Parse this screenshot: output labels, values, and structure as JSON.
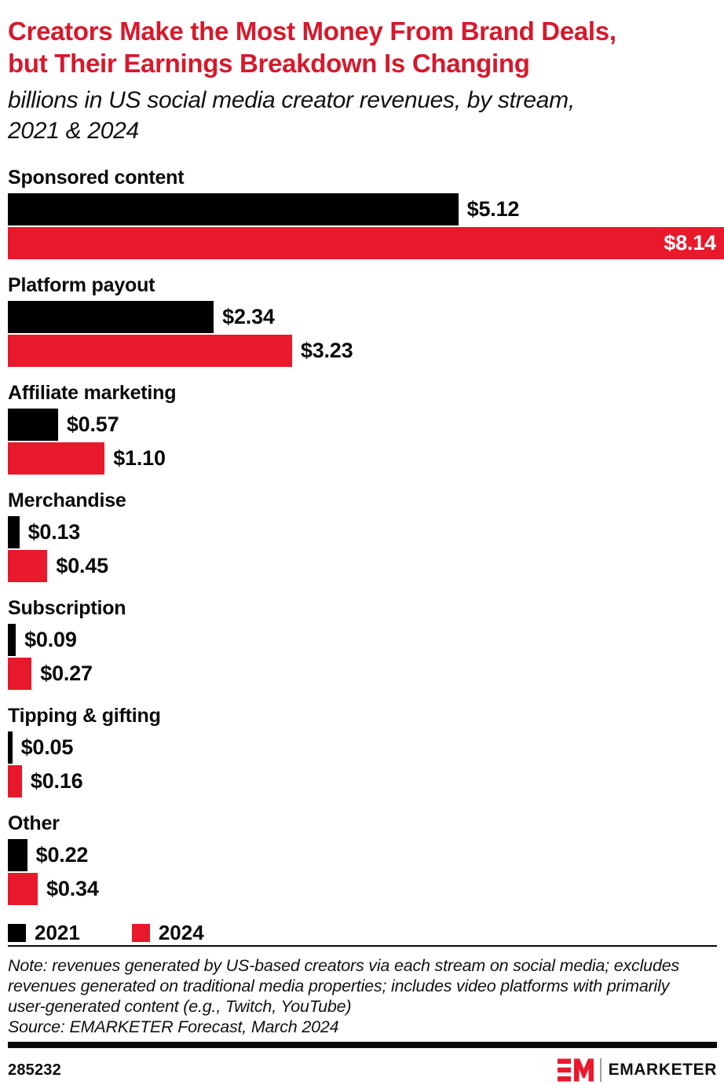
{
  "header": {
    "title_line1": "Creators Make the Most Money From Brand Deals,",
    "title_line2": "but Their Earnings Breakdown Is Changing",
    "subtitle_line1": "billions in US social media creator revenues, by stream,",
    "subtitle_line2": "2021 & 2024"
  },
  "chart_data": {
    "type": "bar",
    "orientation": "horizontal",
    "title": "Creators Make the Most Money From Brand Deals, but Their Earnings Breakdown Is Changing",
    "subtitle": "billions in US social media creator revenues, by stream, 2021 & 2024",
    "unit": "billions of US dollars",
    "xmax": 8.14,
    "grid": false,
    "legend_position": "bottom",
    "categories": [
      "Sponsored content",
      "Platform payout",
      "Affiliate marketing",
      "Merchandise",
      "Subscription",
      "Tipping & gifting",
      "Other"
    ],
    "series": [
      {
        "name": "2021",
        "color": "#000000",
        "values": [
          5.12,
          2.34,
          0.57,
          0.13,
          0.09,
          0.05,
          0.22
        ],
        "labels": [
          "$5.12",
          "$2.34",
          "$0.57",
          "$0.13",
          "$0.09",
          "$0.05",
          "$0.22"
        ]
      },
      {
        "name": "2024",
        "color": "#e8192b",
        "values": [
          8.14,
          3.23,
          1.1,
          0.45,
          0.27,
          0.16,
          0.34
        ],
        "labels": [
          "$8.14",
          "$3.23",
          "$1.10",
          "$0.45",
          "$0.27",
          "$0.16",
          "$0.34"
        ]
      }
    ]
  },
  "colors": {
    "bar_red": "#e8192b",
    "bar_black": "#000000",
    "title_red": "#d7192c"
  },
  "footer": {
    "note_line1": "Note: revenues generated by US-based creators via each stream on social media; excludes",
    "note_line2": "revenues generated on traditional media properties; includes video platforms with primarily",
    "note_line3": "user-generated content (e.g., Twitch, YouTube)",
    "source": "Source: EMARKETER Forecast, March 2024",
    "chart_id": "285232",
    "brand_name": "EMARKETER"
  }
}
